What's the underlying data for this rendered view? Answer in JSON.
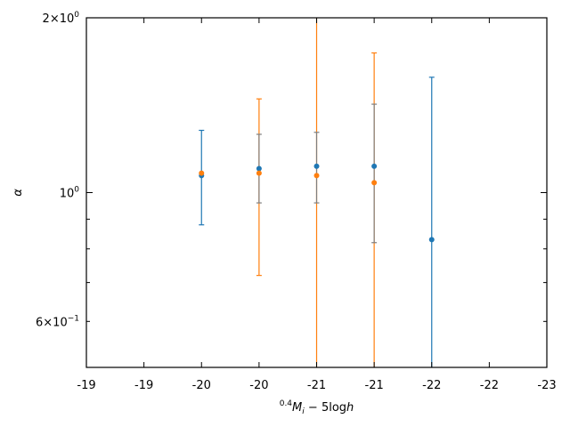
{
  "chart_data": {
    "type": "scatter",
    "title": "",
    "xlabel": "⁰·⁴Mᵢ − 5logh",
    "xlabel_parts": {
      "sup": "0.4",
      "main": "M",
      "sub": "i",
      "rest": " − 5log",
      "h": "h"
    },
    "ylabel": "α",
    "xlim": [
      -19.0,
      -23.0
    ],
    "ylim": [
      0.5,
      2.0
    ],
    "yscale": "log",
    "grid": false,
    "legend": "none",
    "x_ticks": [
      {
        "value": -19.0,
        "label": "-19"
      },
      {
        "value": -19.5,
        "label": "-19"
      },
      {
        "value": -20.0,
        "label": "-20"
      },
      {
        "value": -20.5,
        "label": "-20"
      },
      {
        "value": -21.0,
        "label": "-21"
      },
      {
        "value": -21.5,
        "label": "-21"
      },
      {
        "value": -22.0,
        "label": "-22"
      },
      {
        "value": -22.5,
        "label": "-22"
      },
      {
        "value": -23.0,
        "label": "-23"
      }
    ],
    "y_major_ticks": [
      {
        "value": 1.0,
        "base": "10",
        "exp": "0"
      },
      {
        "value": 2.0,
        "mant": "2",
        "base": "10",
        "exp": "0"
      }
    ],
    "y_minor_ticks": [
      {
        "value": 0.6,
        "mant": "6",
        "base": "10",
        "exp": "−1"
      },
      {
        "value": 0.7
      },
      {
        "value": 0.8
      },
      {
        "value": 0.9
      }
    ],
    "series": [
      {
        "color": "#1f77b4",
        "points": [
          {
            "x": -20.0,
            "y": 1.07,
            "ylo": 0.88,
            "yhi": 1.28
          },
          {
            "x": -20.5,
            "y": 1.1
          },
          {
            "x": -21.0,
            "y": 1.11
          },
          {
            "x": -21.5,
            "y": 1.11
          },
          {
            "x": -22.0,
            "y": 0.83,
            "ylo": 0.5,
            "yhi": 1.58
          }
        ]
      },
      {
        "color": "#ff7f0e",
        "points": [
          {
            "x": -20.0,
            "y": 1.08
          },
          {
            "x": -20.5,
            "y": 1.08,
            "ylo": 0.72,
            "yhi": 1.45
          },
          {
            "x": -21.0,
            "y": 1.07,
            "ylo": 0.5,
            "yhi": 2.0
          },
          {
            "x": -21.5,
            "y": 1.04,
            "ylo": 0.5,
            "yhi": 1.74
          }
        ]
      },
      {
        "color": "#7f7f7f",
        "points": [
          {
            "x": -20.5,
            "ylo": 0.96,
            "yhi": 1.26
          },
          {
            "x": -21.0,
            "ylo": 0.96,
            "yhi": 1.27
          },
          {
            "x": -21.5,
            "ylo": 0.82,
            "yhi": 1.42
          }
        ]
      }
    ]
  }
}
